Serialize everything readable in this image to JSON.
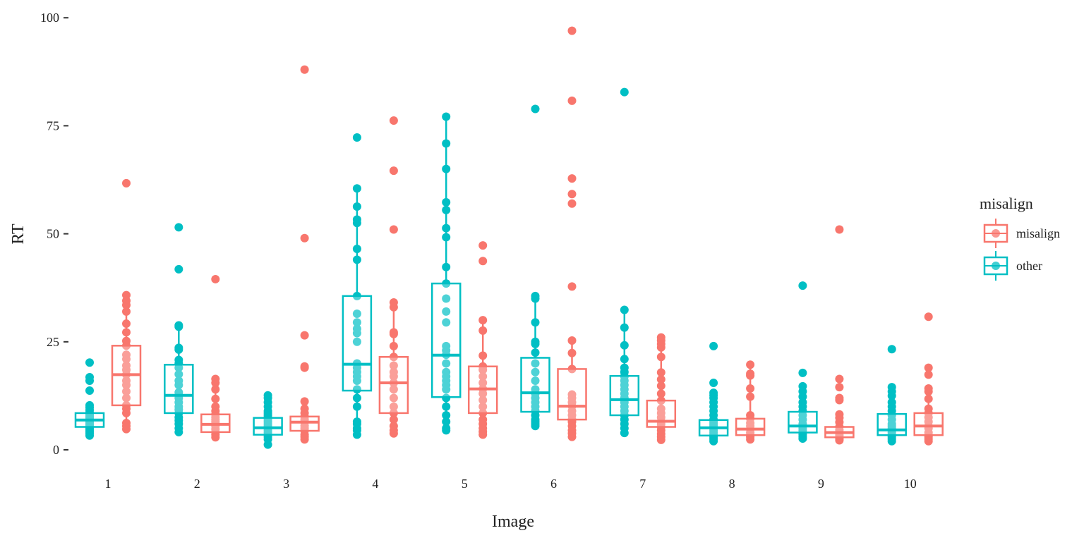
{
  "chart_data": {
    "type": "box",
    "xlabel": "Image",
    "ylabel": "RT",
    "ylim": [
      -4,
      100
    ],
    "yticks": [
      0,
      25,
      50,
      75,
      100
    ],
    "categories": [
      "1",
      "2",
      "3",
      "4",
      "5",
      "6",
      "7",
      "8",
      "9",
      "10"
    ],
    "grid": false,
    "legend": {
      "title": "misalign",
      "placement": "right",
      "entries": [
        "misalign",
        "other"
      ]
    },
    "colors": {
      "misalign": "#F8766D",
      "other": "#00BFC4"
    },
    "series": [
      {
        "name": "other",
        "boxes": [
          {
            "q1": 5.3,
            "median": 6.9,
            "q3": 8.5,
            "lower": 3.3,
            "upper": 10.3,
            "points": [
              3.3,
              3.8,
              4.2,
              4.6,
              5,
              5.4,
              5.8,
              6.2,
              6.6,
              7,
              7.4,
              7.8,
              8.2,
              8.6,
              9.2,
              9.8,
              10.3,
              13.7,
              16,
              16.8,
              20.2
            ]
          },
          {
            "q1": 8.5,
            "median": 12.6,
            "q3": 19.7,
            "lower": 4.1,
            "upper": 28.8,
            "points": [
              4.1,
              5,
              6,
              6.8,
              7.5,
              8.5,
              9.3,
              10,
              11,
              12,
              12.6,
              13.3,
              15,
              16,
              17.5,
              19,
              20,
              20.8,
              23.2,
              23.6,
              28.5,
              28.8,
              41.8,
              51.5
            ]
          },
          {
            "q1": 3.5,
            "median": 5.1,
            "q3": 7.4,
            "lower": 1.2,
            "upper": 12.6,
            "points": [
              1.2,
              2.4,
              3,
              3.5,
              4,
              4.5,
              5,
              5.5,
              6,
              6.5,
              7,
              7.5,
              8,
              8.5,
              9,
              10,
              11,
              12,
              12.6
            ]
          },
          {
            "q1": 13.7,
            "median": 19.8,
            "q3": 35.6,
            "lower": 3.5,
            "upper": 60.5,
            "points": [
              3.5,
              4.5,
              5,
              6,
              6.5,
              10,
              12,
              14,
              16,
              17,
              18,
              19,
              20,
              25,
              27,
              28,
              29.5,
              31.5,
              35.6,
              44,
              46.5,
              52.5,
              53.3,
              56.3,
              60.5,
              72.3
            ]
          },
          {
            "q1": 12.2,
            "median": 21.9,
            "q3": 38.5,
            "lower": 4.5,
            "upper": 77.1,
            "points": [
              4.5,
              5,
              6.5,
              8,
              10,
              12,
              14,
              15,
              16,
              17,
              18,
              20,
              22,
              23,
              24,
              29.5,
              32,
              35,
              38.5,
              42.3,
              49.2,
              51.3,
              55.5,
              57.3,
              65,
              70.9,
              77.1
            ]
          },
          {
            "q1": 8.8,
            "median": 13.2,
            "q3": 21.3,
            "lower": 5.5,
            "upper": 35.6,
            "points": [
              5.5,
              6,
              6.5,
              7,
              8,
              9,
              10,
              11,
              12,
              13,
              14,
              16,
              18,
              20,
              22.5,
              24.5,
              25,
              29.5,
              35,
              35.6,
              78.9
            ]
          },
          {
            "q1": 8.0,
            "median": 11.6,
            "q3": 17.1,
            "lower": 3.9,
            "upper": 32.4,
            "points": [
              3.9,
              5,
              6,
              7,
              8,
              9,
              10,
              11,
              12,
              13,
              14,
              15,
              16,
              17,
              18,
              19,
              21,
              24.2,
              28.3,
              32.4,
              82.8
            ]
          },
          {
            "q1": 3.3,
            "median": 5.1,
            "q3": 6.9,
            "lower": 2.0,
            "upper": 13.2,
            "points": [
              2,
              2.5,
              3,
              3.5,
              4,
              4.5,
              5,
              5.5,
              6,
              6.5,
              7,
              8,
              9,
              10,
              11,
              12,
              12.6,
              13.2,
              15.5,
              24
            ]
          },
          {
            "q1": 4.0,
            "median": 5.5,
            "q3": 8.8,
            "lower": 2.6,
            "upper": 14.7,
            "points": [
              2.6,
              3,
              3.5,
              4,
              4.5,
              5,
              5.5,
              6,
              7,
              8,
              9,
              10,
              11,
              12.3,
              13.5,
              14.7,
              17.8,
              38
            ]
          },
          {
            "q1": 3.4,
            "median": 4.6,
            "q3": 8.3,
            "lower": 2.0,
            "upper": 14.5,
            "points": [
              2,
              2.5,
              3,
              3.5,
              4,
              4.5,
              5,
              5.5,
              6,
              7,
              8,
              9,
              10,
              11,
              12.5,
              13.5,
              14.5,
              23.3
            ]
          }
        ]
      },
      {
        "name": "misalign",
        "boxes": [
          {
            "q1": 10.3,
            "median": 17.4,
            "q3": 24.1,
            "lower": 4.8,
            "upper": 35.8,
            "points": [
              4.8,
              5.5,
              6.2,
              8.5,
              9.5,
              10.3,
              12,
              13.5,
              15,
              16,
              17.4,
              18.5,
              19.5,
              21,
              22,
              24.1,
              25.2,
              27.2,
              29.2,
              32,
              33.5,
              34.5,
              35.8,
              61.7
            ]
          },
          {
            "q1": 4.1,
            "median": 5.9,
            "q3": 8.2,
            "lower": 2.9,
            "upper": 16.4,
            "points": [
              2.9,
              3.5,
              4.1,
              4.8,
              5.5,
              6,
              6.5,
              7,
              7.5,
              8.2,
              9,
              10,
              11.8,
              14,
              15.5,
              16.4,
              39.5
            ]
          },
          {
            "q1": 4.4,
            "median": 6.4,
            "q3": 7.7,
            "lower": 2.4,
            "upper": 11.2,
            "points": [
              2.4,
              3,
              3.5,
              4.4,
              5,
              5.6,
              6.4,
              7,
              7.7,
              8.5,
              9.5,
              11.2,
              19,
              19.3,
              26.5,
              49,
              88
            ]
          },
          {
            "q1": 8.5,
            "median": 15.5,
            "q3": 21.5,
            "lower": 3.8,
            "upper": 34.1,
            "points": [
              3.8,
              4.5,
              5.5,
              7,
              8.5,
              10,
              12,
              14,
              15.5,
              17,
              18,
              19.5,
              21.5,
              24,
              26.8,
              27.2,
              33,
              34.1,
              51,
              64.6,
              76.2
            ]
          },
          {
            "q1": 8.5,
            "median": 14.1,
            "q3": 19.3,
            "lower": 3.5,
            "upper": 30.0,
            "points": [
              3.5,
              4.2,
              5,
              6,
              7,
              8.5,
              10,
              11.5,
              13,
              14.1,
              15.5,
              17,
              18.5,
              19.3,
              21.8,
              27.6,
              30,
              43.7,
              47.3
            ]
          },
          {
            "q1": 7.0,
            "median": 10.1,
            "q3": 18.7,
            "lower": 3.0,
            "upper": 25.3,
            "points": [
              3,
              3.8,
              4.5,
              5.5,
              6.5,
              7,
              8,
              9,
              10.1,
              11,
              12,
              12.8,
              18.7,
              22.4,
              25.3,
              37.8,
              57,
              59.2,
              62.8,
              80.8,
              97
            ]
          },
          {
            "q1": 5.3,
            "median": 6.6,
            "q3": 11.4,
            "lower": 2.3,
            "upper": 26.0,
            "points": [
              2.3,
              3,
              3.7,
              4.5,
              5.3,
              6,
              6.6,
              7.5,
              8.5,
              9.5,
              11.4,
              13,
              14.8,
              16.3,
              17.9,
              21.5,
              23.7,
              24.5,
              25.3,
              26
            ]
          },
          {
            "q1": 3.4,
            "median": 4.8,
            "q3": 7.2,
            "lower": 2.4,
            "upper": 19.7,
            "points": [
              2.4,
              3,
              3.4,
              4,
              4.8,
              5.5,
              6.2,
              7.2,
              8,
              12.3,
              14.2,
              17.2,
              17.6,
              19.7
            ]
          },
          {
            "q1": 2.9,
            "median": 4.0,
            "q3": 5.3,
            "lower": 2.2,
            "upper": 8.2,
            "points": [
              2.2,
              2.6,
              2.9,
              3.4,
              4,
              4.6,
              5.3,
              6.4,
              7.4,
              8.2,
              11.5,
              12,
              14.5,
              16.4,
              51
            ]
          },
          {
            "q1": 3.4,
            "median": 5.5,
            "q3": 8.5,
            "lower": 2.0,
            "upper": 14.2,
            "points": [
              2,
              2.5,
              3,
              3.4,
              4,
              5,
              5.5,
              6.5,
              7.5,
              8.5,
              9.5,
              11.8,
              13.5,
              14.2,
              17.4,
              19,
              30.8
            ]
          }
        ]
      }
    ]
  }
}
